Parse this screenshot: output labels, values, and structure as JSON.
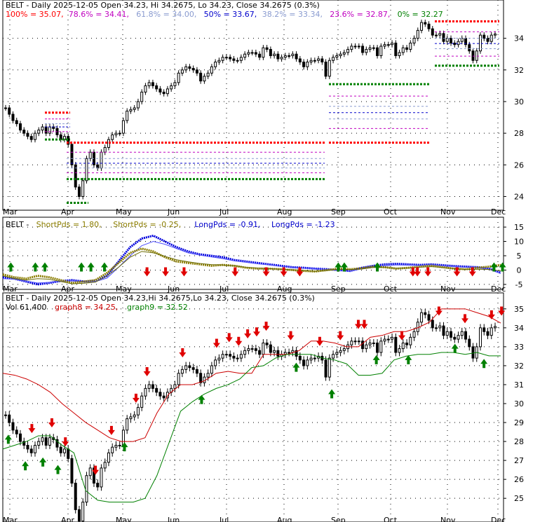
{
  "chart_data": [
    {
      "type": "candlestick",
      "title_items": [
        {
          "text": "BELT - Daily 2025-12-05 Open 34.23, Hi 34.2675, Lo 34.23, Close 34.2675 (0.3%)",
          "color": "#000000"
        }
      ],
      "legend_items": [
        {
          "text": "100% = 35.07,",
          "color": "#ff0000"
        },
        {
          "text": "78.6% = 34.41,",
          "color": "#c000c0"
        },
        {
          "text": "61.8% = 34.00,",
          "color": "#8a9bd0"
        },
        {
          "text": "50% = 33.67,",
          "color": "#0000cc"
        },
        {
          "text": "38.2% = 33.34,",
          "color": "#8a9bd0"
        },
        {
          "text": "23.6% = 32.87,",
          "color": "#c000c0"
        },
        {
          "text": "0% = 32.27",
          "color": "#008000"
        }
      ],
      "yaxis": {
        "min": 23.4,
        "max": 35.8,
        "ticks": [
          "24",
          "26",
          "28",
          "30",
          "32",
          "34"
        ]
      },
      "xaxis_labels": [
        "Mar",
        "Apr",
        "May",
        "Jun",
        "Jul",
        "Aug",
        "Sep",
        "Oct",
        "Nov",
        "Dec"
      ],
      "levels_early": [
        {
          "name": "100%",
          "value": 27.4,
          "color": "#ff0000"
        },
        {
          "name": "78.6%",
          "value": 26.8,
          "color": "#c000c0"
        },
        {
          "name": "61.8%",
          "value": 26.4,
          "color": "#8a9bd0"
        },
        {
          "name": "50%",
          "value": 26.1,
          "color": "#0000cc"
        },
        {
          "name": "38.2%",
          "value": 25.8,
          "color": "#8a9bd0"
        },
        {
          "name": "23.6%",
          "value": 25.5,
          "color": "#c000c0"
        },
        {
          "name": "0%",
          "value": 25.1,
          "color": "#008000"
        }
      ],
      "levels_mid": [
        {
          "name": "100%",
          "value": 27.4,
          "color": "#ff0000"
        },
        {
          "name": "78.6%",
          "value": 30.35,
          "color": "#c000c0"
        },
        {
          "name": "61.8%",
          "value": 29.7,
          "color": "#8a9bd0"
        },
        {
          "name": "50%",
          "value": 29.3,
          "color": "#0000cc"
        },
        {
          "name": "38.2%",
          "value": 28.9,
          "color": "#8a9bd0"
        },
        {
          "name": "23.6%",
          "value": 28.3,
          "color": "#c000c0"
        },
        {
          "name": "0%",
          "value": 31.1,
          "color": "#008000"
        }
      ],
      "levels_last": [
        {
          "name": "100%",
          "value": 35.07,
          "color": "#ff0000"
        },
        {
          "name": "78.6%",
          "value": 34.41,
          "color": "#c000c0"
        },
        {
          "name": "61.8%",
          "value": 34.0,
          "color": "#8a9bd0"
        },
        {
          "name": "50%",
          "value": 33.67,
          "color": "#0000cc"
        },
        {
          "name": "38.2%",
          "value": 33.34,
          "color": "#8a9bd0"
        },
        {
          "name": "23.6%",
          "value": 32.87,
          "color": "#c000c0"
        },
        {
          "name": "0%",
          "value": 32.27,
          "color": "#008000"
        }
      ],
      "closes": [
        29.6,
        29.2,
        28.8,
        28.6,
        28.2,
        28.0,
        27.8,
        27.6,
        28.0,
        28.2,
        28.4,
        28.0,
        28.4,
        28.3,
        27.9,
        27.6,
        27.8,
        27.3,
        26.0,
        24.6,
        24.0,
        25.0,
        26.4,
        26.8,
        26.0,
        25.8,
        26.8,
        27.1,
        27.6,
        27.9,
        28.0,
        28.0,
        28.8,
        29.4,
        29.5,
        29.6,
        30.0,
        30.6,
        31.0,
        31.2,
        31.0,
        30.8,
        30.6,
        30.5,
        30.8,
        31.0,
        31.2,
        31.8,
        32.0,
        32.2,
        32.1,
        32.0,
        31.8,
        31.3,
        31.6,
        31.8,
        32.2,
        32.5,
        32.6,
        32.8,
        32.8,
        32.7,
        32.6,
        32.6,
        32.8,
        33.0,
        33.1,
        33.1,
        33.0,
        32.8,
        33.4,
        33.3,
        32.9,
        33.0,
        32.7,
        32.8,
        32.9,
        32.9,
        33.0,
        32.7,
        32.5,
        32.2,
        32.5,
        32.6,
        32.6,
        32.7,
        32.5,
        31.6,
        32.6,
        32.8,
        32.9,
        33.0,
        33.1,
        33.3,
        33.5,
        33.5,
        33.5,
        33.1,
        33.3,
        33.4,
        33.4,
        32.9,
        33.5,
        33.6,
        33.6,
        33.7,
        32.9,
        33.1,
        33.4,
        33.3,
        33.7,
        34.0,
        34.5,
        35.0,
        34.9,
        34.6,
        34.2,
        34.2,
        34.3,
        33.8,
        34.0,
        33.7,
        33.6,
        33.8,
        34.0,
        33.6,
        33.2,
        32.6,
        33.2,
        34.2,
        34.0,
        33.8,
        34.2,
        34.27
      ]
    },
    {
      "type": "line",
      "title_items": [
        {
          "text": "BELT -",
          "color": "#000000"
        },
        {
          "text": "ShortPds = 1.80,",
          "color": "#8b7d00"
        },
        {
          "text": "ShortPds = -0.25,",
          "color": "#8b7d00"
        },
        {
          "text": "LongPds = -0.91,",
          "color": "#0000cc"
        },
        {
          "text": "LongPds = -1.23",
          "color": "#0000cc"
        }
      ],
      "yaxis": {
        "min": -6,
        "max": 16,
        "ticks": [
          "-5",
          "0",
          "5",
          "10",
          "15"
        ]
      },
      "xaxis_labels": [
        "Mar",
        "Apr",
        "May",
        "Jun",
        "Jul",
        "Aug",
        "Sep",
        "Oct",
        "Nov",
        "Dec"
      ],
      "series": [
        {
          "name": "LongPds",
          "color": "#0000dd",
          "values": [
            -2.5,
            -3.0,
            -4.0,
            -5.0,
            -4.5,
            -3.8,
            -3.5,
            -4.0,
            -3.8,
            -2.0,
            3.0,
            8.0,
            11.0,
            12.0,
            10.0,
            8.0,
            6.5,
            5.5,
            5.0,
            4.5,
            3.5,
            3.0,
            2.5,
            2.0,
            1.5,
            1.0,
            0.8,
            0.5,
            0.3,
            0.0,
            -0.3,
            0.8,
            1.5,
            2.0,
            2.2,
            2.0,
            1.8,
            2.0,
            1.7,
            1.4,
            1.2,
            1.0,
            0.5,
            -0.91
          ]
        },
        {
          "name": "LongPds 2",
          "color": "#5050ff",
          "values": [
            -3.0,
            -3.2,
            -3.8,
            -4.5,
            -4.3,
            -4.0,
            -3.8,
            -4.2,
            -4.0,
            -2.8,
            1.0,
            5.0,
            8.5,
            10.0,
            9.0,
            7.5,
            6.0,
            5.2,
            4.6,
            4.0,
            3.2,
            2.7,
            2.2,
            1.8,
            1.4,
            1.0,
            0.7,
            0.5,
            0.2,
            -0.1,
            -0.4,
            0.4,
            1.0,
            1.5,
            1.8,
            1.7,
            1.6,
            1.7,
            1.5,
            1.2,
            1.0,
            0.8,
            0.3,
            -1.23
          ]
        },
        {
          "name": "ShortPds",
          "color": "#8b7d00",
          "values": [
            -1.5,
            -2.5,
            -3.0,
            -2.0,
            -2.5,
            -3.5,
            -4.5,
            -4.0,
            -3.5,
            -1.0,
            2.5,
            6.0,
            7.5,
            6.5,
            4.5,
            3.0,
            2.5,
            2.0,
            1.5,
            1.8,
            1.5,
            0.8,
            0.5,
            0.5,
            0.3,
            0.0,
            -0.3,
            -0.5,
            0.0,
            0.5,
            0.3,
            0.6,
            1.2,
            1.0,
            0.5,
            0.8,
            1.2,
            1.5,
            1.0,
            0.5,
            0.3,
            0.8,
            1.2,
            1.8
          ]
        },
        {
          "name": "ShortPds 2",
          "color": "#6b6b00",
          "values": [
            -2.0,
            -3.0,
            -3.5,
            -3.0,
            -3.2,
            -4.0,
            -4.8,
            -4.6,
            -4.2,
            -2.0,
            1.0,
            4.5,
            6.5,
            6.0,
            4.8,
            3.6,
            2.9,
            2.3,
            1.9,
            1.8,
            1.5,
            1.0,
            0.7,
            0.5,
            0.3,
            0.1,
            -0.2,
            -0.4,
            -0.1,
            0.3,
            0.2,
            0.4,
            0.9,
            0.9,
            0.6,
            0.7,
            1.0,
            1.2,
            0.9,
            0.5,
            0.2,
            0.3,
            0.2,
            -0.25
          ]
        }
      ],
      "signals": [
        {
          "pos": 0.016,
          "dir": "up"
        },
        {
          "pos": 0.065,
          "dir": "up"
        },
        {
          "pos": 0.084,
          "dir": "up"
        },
        {
          "pos": 0.157,
          "dir": "up"
        },
        {
          "pos": 0.176,
          "dir": "up"
        },
        {
          "pos": 0.203,
          "dir": "up"
        },
        {
          "pos": 0.288,
          "dir": "down"
        },
        {
          "pos": 0.325,
          "dir": "down"
        },
        {
          "pos": 0.362,
          "dir": "down"
        },
        {
          "pos": 0.464,
          "dir": "down"
        },
        {
          "pos": 0.526,
          "dir": "down"
        },
        {
          "pos": 0.561,
          "dir": "down"
        },
        {
          "pos": 0.593,
          "dir": "down"
        },
        {
          "pos": 0.67,
          "dir": "up"
        },
        {
          "pos": 0.682,
          "dir": "up"
        },
        {
          "pos": 0.748,
          "dir": "up"
        },
        {
          "pos": 0.819,
          "dir": "down"
        },
        {
          "pos": 0.828,
          "dir": "down"
        },
        {
          "pos": 0.849,
          "dir": "down"
        },
        {
          "pos": 0.907,
          "dir": "down"
        },
        {
          "pos": 0.938,
          "dir": "down"
        },
        {
          "pos": 0.981,
          "dir": "up"
        },
        {
          "pos": 0.998,
          "dir": "up"
        }
      ]
    },
    {
      "type": "candlestick",
      "title_items": [
        {
          "text": "BELT - Daily 2025-12-05 Open 34.23,Hi 34.2675,Lo 34.23, Close 34.2675 (0.3%)",
          "color": "#000000"
        }
      ],
      "legend_items": [
        {
          "text": "Vol 61,400",
          "color": "#000000"
        },
        {
          "text": "graph8 = 34.25,",
          "color": "#cc0000"
        },
        {
          "text": "graph9 = 32.52",
          "color": "#008000"
        }
      ],
      "yaxis": {
        "min": 24.6,
        "max": 35.4,
        "ticks": [
          "25",
          "26",
          "27",
          "28",
          "29",
          "30",
          "31",
          "32",
          "33",
          "34",
          "35"
        ]
      },
      "xaxis_labels": [
        "Mar",
        "Apr",
        "May",
        "Jun",
        "Jul",
        "Aug",
        "Sep",
        "Oct",
        "Nov",
        "Dec"
      ],
      "graph8": [
        31.6,
        31.5,
        31.3,
        31.0,
        30.6,
        30.0,
        29.5,
        29.0,
        28.6,
        28.2,
        28.0,
        28.0,
        28.2,
        29.5,
        30.5,
        31.0,
        31.0,
        31.2,
        31.6,
        31.7,
        31.6,
        31.6,
        32.6,
        32.6,
        32.6,
        32.8,
        33.3,
        33.3,
        33.2,
        33.0,
        33.0,
        33.5,
        33.6,
        33.8,
        33.8,
        34.0,
        34.3,
        35.0,
        35.0,
        35.0,
        34.8,
        34.6,
        34.25
      ],
      "graph9": [
        27.6,
        27.8,
        28.0,
        28.3,
        28.3,
        27.8,
        27.4,
        25.4,
        24.9,
        24.8,
        24.8,
        24.8,
        25.0,
        26.2,
        27.9,
        29.6,
        30.1,
        30.5,
        30.8,
        31.0,
        31.3,
        31.9,
        32.0,
        32.4,
        32.6,
        32.6,
        32.6,
        32.4,
        32.3,
        32.1,
        31.5,
        31.5,
        31.6,
        32.3,
        32.5,
        32.6,
        32.6,
        32.7,
        32.7,
        32.6,
        32.7,
        32.52,
        32.52
      ],
      "signals": [
        {
          "pos": 0.011,
          "dir": "up"
        },
        {
          "pos": 0.045,
          "dir": "up"
        },
        {
          "pos": 0.058,
          "dir": "down"
        },
        {
          "pos": 0.08,
          "dir": "up"
        },
        {
          "pos": 0.098,
          "dir": "down"
        },
        {
          "pos": 0.11,
          "dir": "up"
        },
        {
          "pos": 0.125,
          "dir": "down"
        },
        {
          "pos": 0.185,
          "dir": "down"
        },
        {
          "pos": 0.217,
          "dir": "down"
        },
        {
          "pos": 0.243,
          "dir": "up"
        },
        {
          "pos": 0.266,
          "dir": "down"
        },
        {
          "pos": 0.288,
          "dir": "down"
        },
        {
          "pos": 0.359,
          "dir": "down"
        },
        {
          "pos": 0.397,
          "dir": "up"
        },
        {
          "pos": 0.427,
          "dir": "down"
        },
        {
          "pos": 0.452,
          "dir": "down"
        },
        {
          "pos": 0.471,
          "dir": "down"
        },
        {
          "pos": 0.489,
          "dir": "down"
        },
        {
          "pos": 0.507,
          "dir": "down"
        },
        {
          "pos": 0.526,
          "dir": "down"
        },
        {
          "pos": 0.575,
          "dir": "down"
        },
        {
          "pos": 0.586,
          "dir": "up"
        },
        {
          "pos": 0.633,
          "dir": "down"
        },
        {
          "pos": 0.657,
          "dir": "up"
        },
        {
          "pos": 0.674,
          "dir": "down"
        },
        {
          "pos": 0.71,
          "dir": "down"
        },
        {
          "pos": 0.722,
          "dir": "down"
        },
        {
          "pos": 0.746,
          "dir": "up"
        },
        {
          "pos": 0.797,
          "dir": "down"
        },
        {
          "pos": 0.81,
          "dir": "up"
        },
        {
          "pos": 0.871,
          "dir": "down"
        },
        {
          "pos": 0.903,
          "dir": "up"
        },
        {
          "pos": 0.923,
          "dir": "down"
        },
        {
          "pos": 0.961,
          "dir": "up"
        },
        {
          "pos": 0.976,
          "dir": "down"
        },
        {
          "pos": 0.996,
          "dir": "down"
        }
      ]
    }
  ]
}
